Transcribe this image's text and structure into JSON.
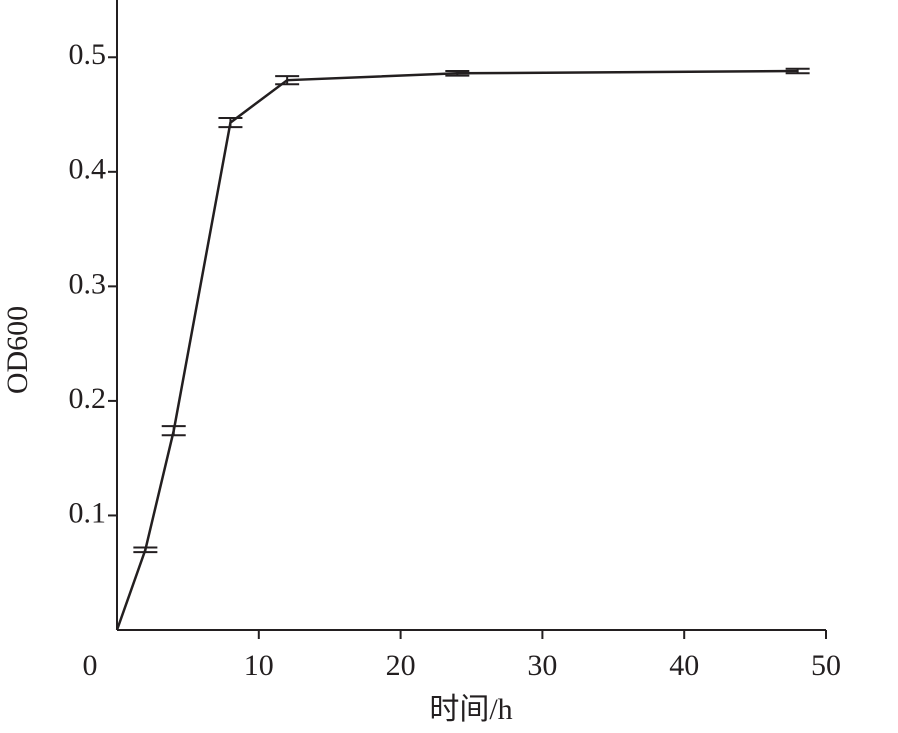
{
  "chart_data": {
    "type": "line",
    "x_label": "时间/h",
    "y_label": "OD600",
    "x": [
      0,
      2,
      4,
      8,
      12,
      24,
      48
    ],
    "series": [
      {
        "name": "OD600",
        "color": "#231f20",
        "values": [
          0,
          0.07,
          0.174,
          0.443,
          0.48,
          0.486,
          0.488
        ],
        "errors": [
          null,
          0.002,
          0.004,
          0.004,
          0.0035,
          0.002,
          0.002
        ]
      }
    ],
    "xlim": [
      0,
      50
    ],
    "xticks": [
      0,
      10,
      20,
      30,
      40,
      50
    ],
    "ylim": [
      0,
      0.55
    ],
    "yticks": [
      0.1,
      0.2,
      0.3,
      0.4,
      0.5
    ],
    "grid": false
  }
}
